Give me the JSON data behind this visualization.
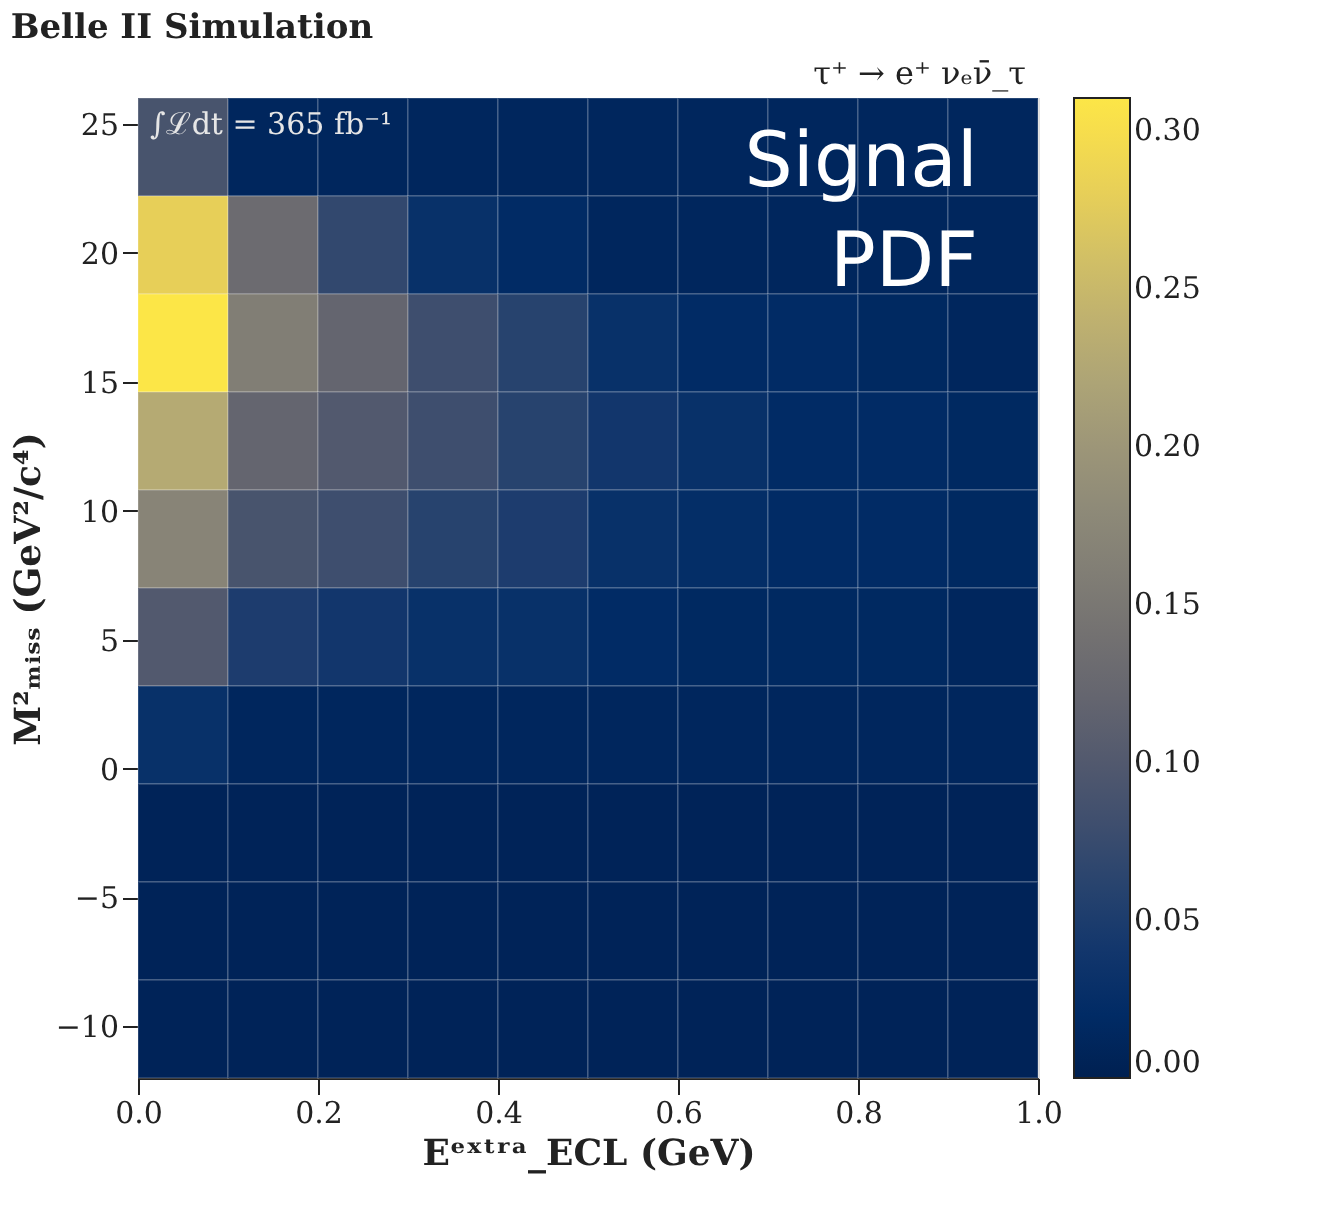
{
  "chart_data": {
    "type": "heatmap",
    "title": "Belle II Simulation",
    "subtitle": "τ⁺ → e⁺ νₑν̄_τ",
    "xlabel": "Eᵉˣᵗʳᵃ_ECL (GeV)",
    "ylabel": "M²ₘᵢₛₛ (GeV²/c⁴)",
    "annotations": [
      "∫ℒdt = 365 fb⁻¹",
      "Signal PDF"
    ],
    "x": [
      0.05,
      0.15,
      0.25,
      0.35,
      0.45,
      0.55,
      0.65,
      0.75,
      0.85,
      0.95
    ],
    "y": [
      24.1,
      20.3,
      16.5,
      12.7,
      8.9,
      5.1,
      1.3,
      -2.5,
      -6.3,
      -10.1
    ],
    "cells": [
      [
        0.09,
        0.01,
        0.01,
        0.01,
        0.01,
        0.01,
        0.01,
        0.01,
        0.01,
        0.01
      ],
      [
        0.28,
        0.13,
        0.07,
        0.03,
        0.02,
        0.01,
        0.01,
        0.01,
        0.01,
        0.01
      ],
      [
        0.31,
        0.16,
        0.12,
        0.08,
        0.06,
        0.03,
        0.02,
        0.02,
        0.015,
        0.01
      ],
      [
        0.23,
        0.12,
        0.1,
        0.08,
        0.06,
        0.04,
        0.03,
        0.02,
        0.02,
        0.015
      ],
      [
        0.17,
        0.09,
        0.08,
        0.06,
        0.05,
        0.03,
        0.025,
        0.02,
        0.02,
        0.015
      ],
      [
        0.1,
        0.05,
        0.04,
        0.03,
        0.03,
        0.02,
        0.015,
        0.015,
        0.015,
        0.01
      ],
      [
        0.03,
        0.01,
        0.01,
        0.01,
        0.01,
        0.01,
        0.01,
        0.01,
        0.01,
        0.01
      ],
      [
        0.005,
        0.005,
        0.005,
        0.005,
        0.005,
        0.005,
        0.005,
        0.005,
        0.005,
        0.005
      ],
      [
        0.005,
        0.005,
        0.005,
        0.005,
        0.005,
        0.005,
        0.005,
        0.005,
        0.005,
        0.005
      ],
      [
        0.005,
        0.005,
        0.005,
        0.005,
        0.005,
        0.005,
        0.005,
        0.005,
        0.005,
        0.005
      ]
    ],
    "xlim": [
      0,
      1
    ],
    "xticks": [
      {
        "value": 0,
        "label": "0.0"
      },
      0.2,
      0.4,
      0.6,
      0.8,
      {
        "value": 1,
        "label": "1.0"
      }
    ],
    "ylim": [
      -12,
      26
    ],
    "yticks": [
      -10,
      -5,
      0,
      5,
      10,
      15,
      20,
      25
    ],
    "clim": [
      0,
      0.31
    ],
    "cticks": [
      {
        "value": 0,
        "label": "0.00"
      },
      0.05,
      {
        "value": 0.1,
        "label": "0.10"
      },
      0.15,
      {
        "value": 0.2,
        "label": "0.20"
      },
      0.25,
      {
        "value": 0.3,
        "label": "0.30"
      }
    ]
  }
}
